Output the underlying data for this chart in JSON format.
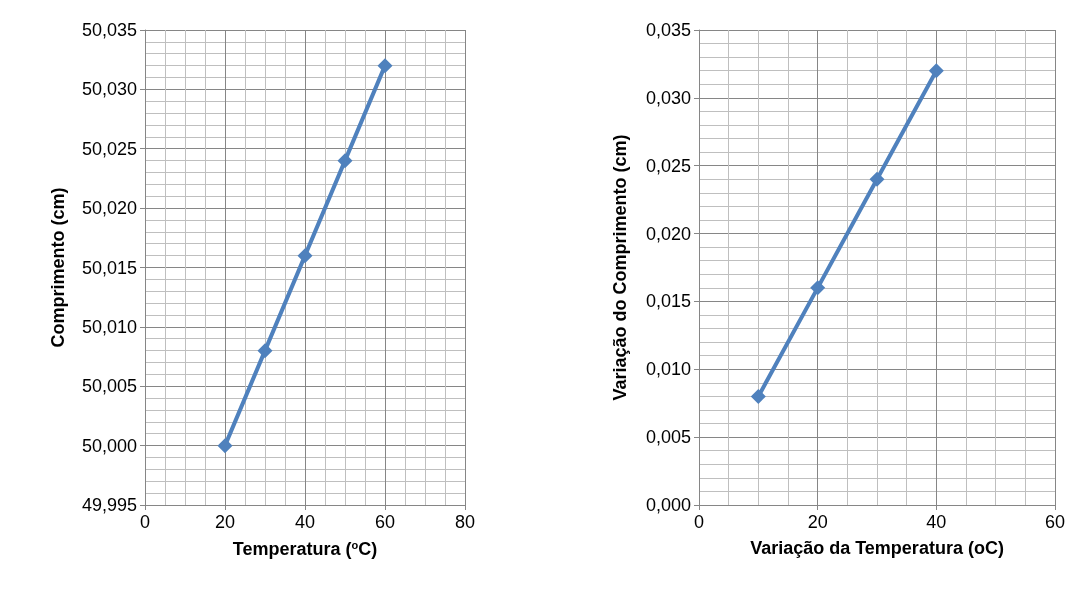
{
  "chart_data": [
    {
      "type": "line",
      "xlabel": "Temperatura ($^{o}$C)",
      "ylabel": "Comprimento (cm)",
      "x": [
        20,
        30,
        40,
        50,
        60
      ],
      "series": [
        {
          "color": "#4f81bd",
          "values": [
            50.0,
            50.008,
            50.016,
            50.024,
            50.032
          ]
        }
      ],
      "xlim": [
        0,
        80
      ],
      "xticks": [
        0,
        20,
        40,
        60,
        80
      ],
      "ylim": [
        49.995,
        50.035
      ],
      "yticks": [
        {
          "value": 49.995,
          "label": "49,995"
        },
        {
          "value": 50.0,
          "label": "50,000"
        },
        {
          "value": 50.005,
          "label": "50,005"
        },
        {
          "value": 50.01,
          "label": "50,010"
        },
        {
          "value": 50.015,
          "label": "50,015"
        },
        {
          "value": 50.02,
          "label": "50,020"
        },
        {
          "value": 50.025,
          "label": "50,025"
        },
        {
          "value": 50.03,
          "label": "50,030"
        },
        {
          "value": 50.035,
          "label": "50,035"
        }
      ],
      "grid": true,
      "marker": "diamond",
      "line_style": "solid"
    },
    {
      "type": "line",
      "xlabel": "Variação da Temperatura (oC)",
      "ylabel": "Variação do Comprimento (cm)",
      "x": [
        10,
        20,
        30,
        40
      ],
      "series": [
        {
          "color": "#4f81bd",
          "values": [
            0.008,
            0.016,
            0.024,
            0.032
          ]
        }
      ],
      "xlim": [
        0,
        60
      ],
      "xticks": [
        0,
        20,
        40,
        60
      ],
      "ylim": [
        0,
        0.035
      ],
      "yticks": [
        {
          "value": 0,
          "label": "0,000"
        },
        {
          "value": 0.005,
          "label": "0,005"
        },
        {
          "value": 0.01,
          "label": "0,010"
        },
        {
          "value": 0.015,
          "label": "0,015"
        },
        {
          "value": 0.02,
          "label": "0,020"
        },
        {
          "value": 0.025,
          "label": "0,025"
        },
        {
          "value": 0.03,
          "label": "0,030"
        },
        {
          "value": 0.035,
          "label": "0,035"
        }
      ],
      "grid": true,
      "marker": "diamond",
      "line_style": "solid"
    }
  ]
}
